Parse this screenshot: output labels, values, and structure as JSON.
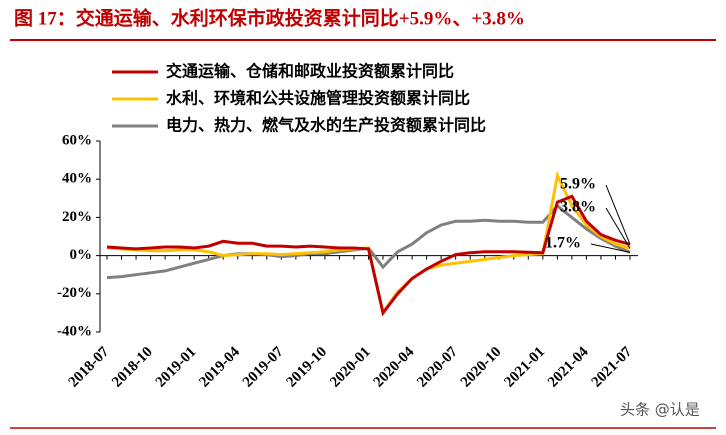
{
  "chart_data": {
    "type": "line",
    "title": "图 17：交通运输、水利环保市政投资累计同比+5.9%、+3.8%",
    "categories": [
      "2018-07",
      null,
      null,
      "2018-10",
      null,
      null,
      "2019-01",
      null,
      null,
      "2019-04",
      null,
      null,
      "2019-07",
      null,
      null,
      "2019-10",
      null,
      null,
      "2020-01",
      null,
      null,
      "2020-04",
      null,
      null,
      "2020-07",
      null,
      null,
      "2020-10",
      null,
      null,
      "2021-01",
      null,
      null,
      "2021-04",
      null,
      null,
      "2021-07"
    ],
    "series": [
      {
        "name": "交通运输、仓储和邮政业投资额累计同比",
        "color": "#c00000",
        "values": [
          4.5,
          4,
          3.5,
          4,
          4.5,
          4.5,
          4,
          5,
          7.5,
          6.5,
          6.5,
          5,
          5,
          4.5,
          5,
          4.5,
          4,
          4,
          3.5,
          -30,
          -20,
          -12,
          -7,
          -3,
          0.5,
          1.5,
          2,
          2,
          2,
          1.8,
          1.5,
          28,
          31,
          18,
          11,
          8,
          5.9
        ]
      },
      {
        "name": "水利、环境和公共设施管理投资额累计同比",
        "color": "#ffc000",
        "values": [
          4,
          3.5,
          3,
          2.5,
          2.5,
          3,
          3,
          2,
          0,
          0.5,
          1,
          1,
          0.5,
          1,
          1.5,
          2,
          3,
          3.5,
          4,
          -30,
          -19,
          -12,
          -7,
          -5,
          -4,
          -3,
          -2,
          -1,
          0,
          0.5,
          1,
          42,
          26,
          16,
          10,
          6,
          3.8
        ]
      },
      {
        "name": "电力、热力、燃气及水的生产投资额累计同比",
        "color": "#808080",
        "values": [
          -11.5,
          -11,
          -10,
          -9,
          -8,
          -6,
          -4,
          -2,
          0,
          1,
          1,
          0.5,
          -0.5,
          0,
          1,
          1,
          2,
          3,
          4,
          -6,
          2,
          6,
          12,
          16,
          18,
          18,
          18.5,
          18,
          18,
          17.5,
          17.5,
          26,
          20,
          14,
          9,
          5,
          1.7
        ]
      }
    ],
    "annotations": [
      "5.9%",
      "3.8%",
      "1.7%"
    ],
    "ylim": [
      -40,
      60
    ],
    "yticks": [
      {
        "value": -40,
        "label": "-40%"
      },
      {
        "value": -20,
        "label": "-20%"
      },
      {
        "value": 0,
        "label": "0%"
      },
      {
        "value": 20,
        "label": "20%"
      },
      {
        "value": 40,
        "label": "40%"
      },
      {
        "value": 60,
        "label": "60%"
      }
    ],
    "watermark": "头条 @认是"
  }
}
